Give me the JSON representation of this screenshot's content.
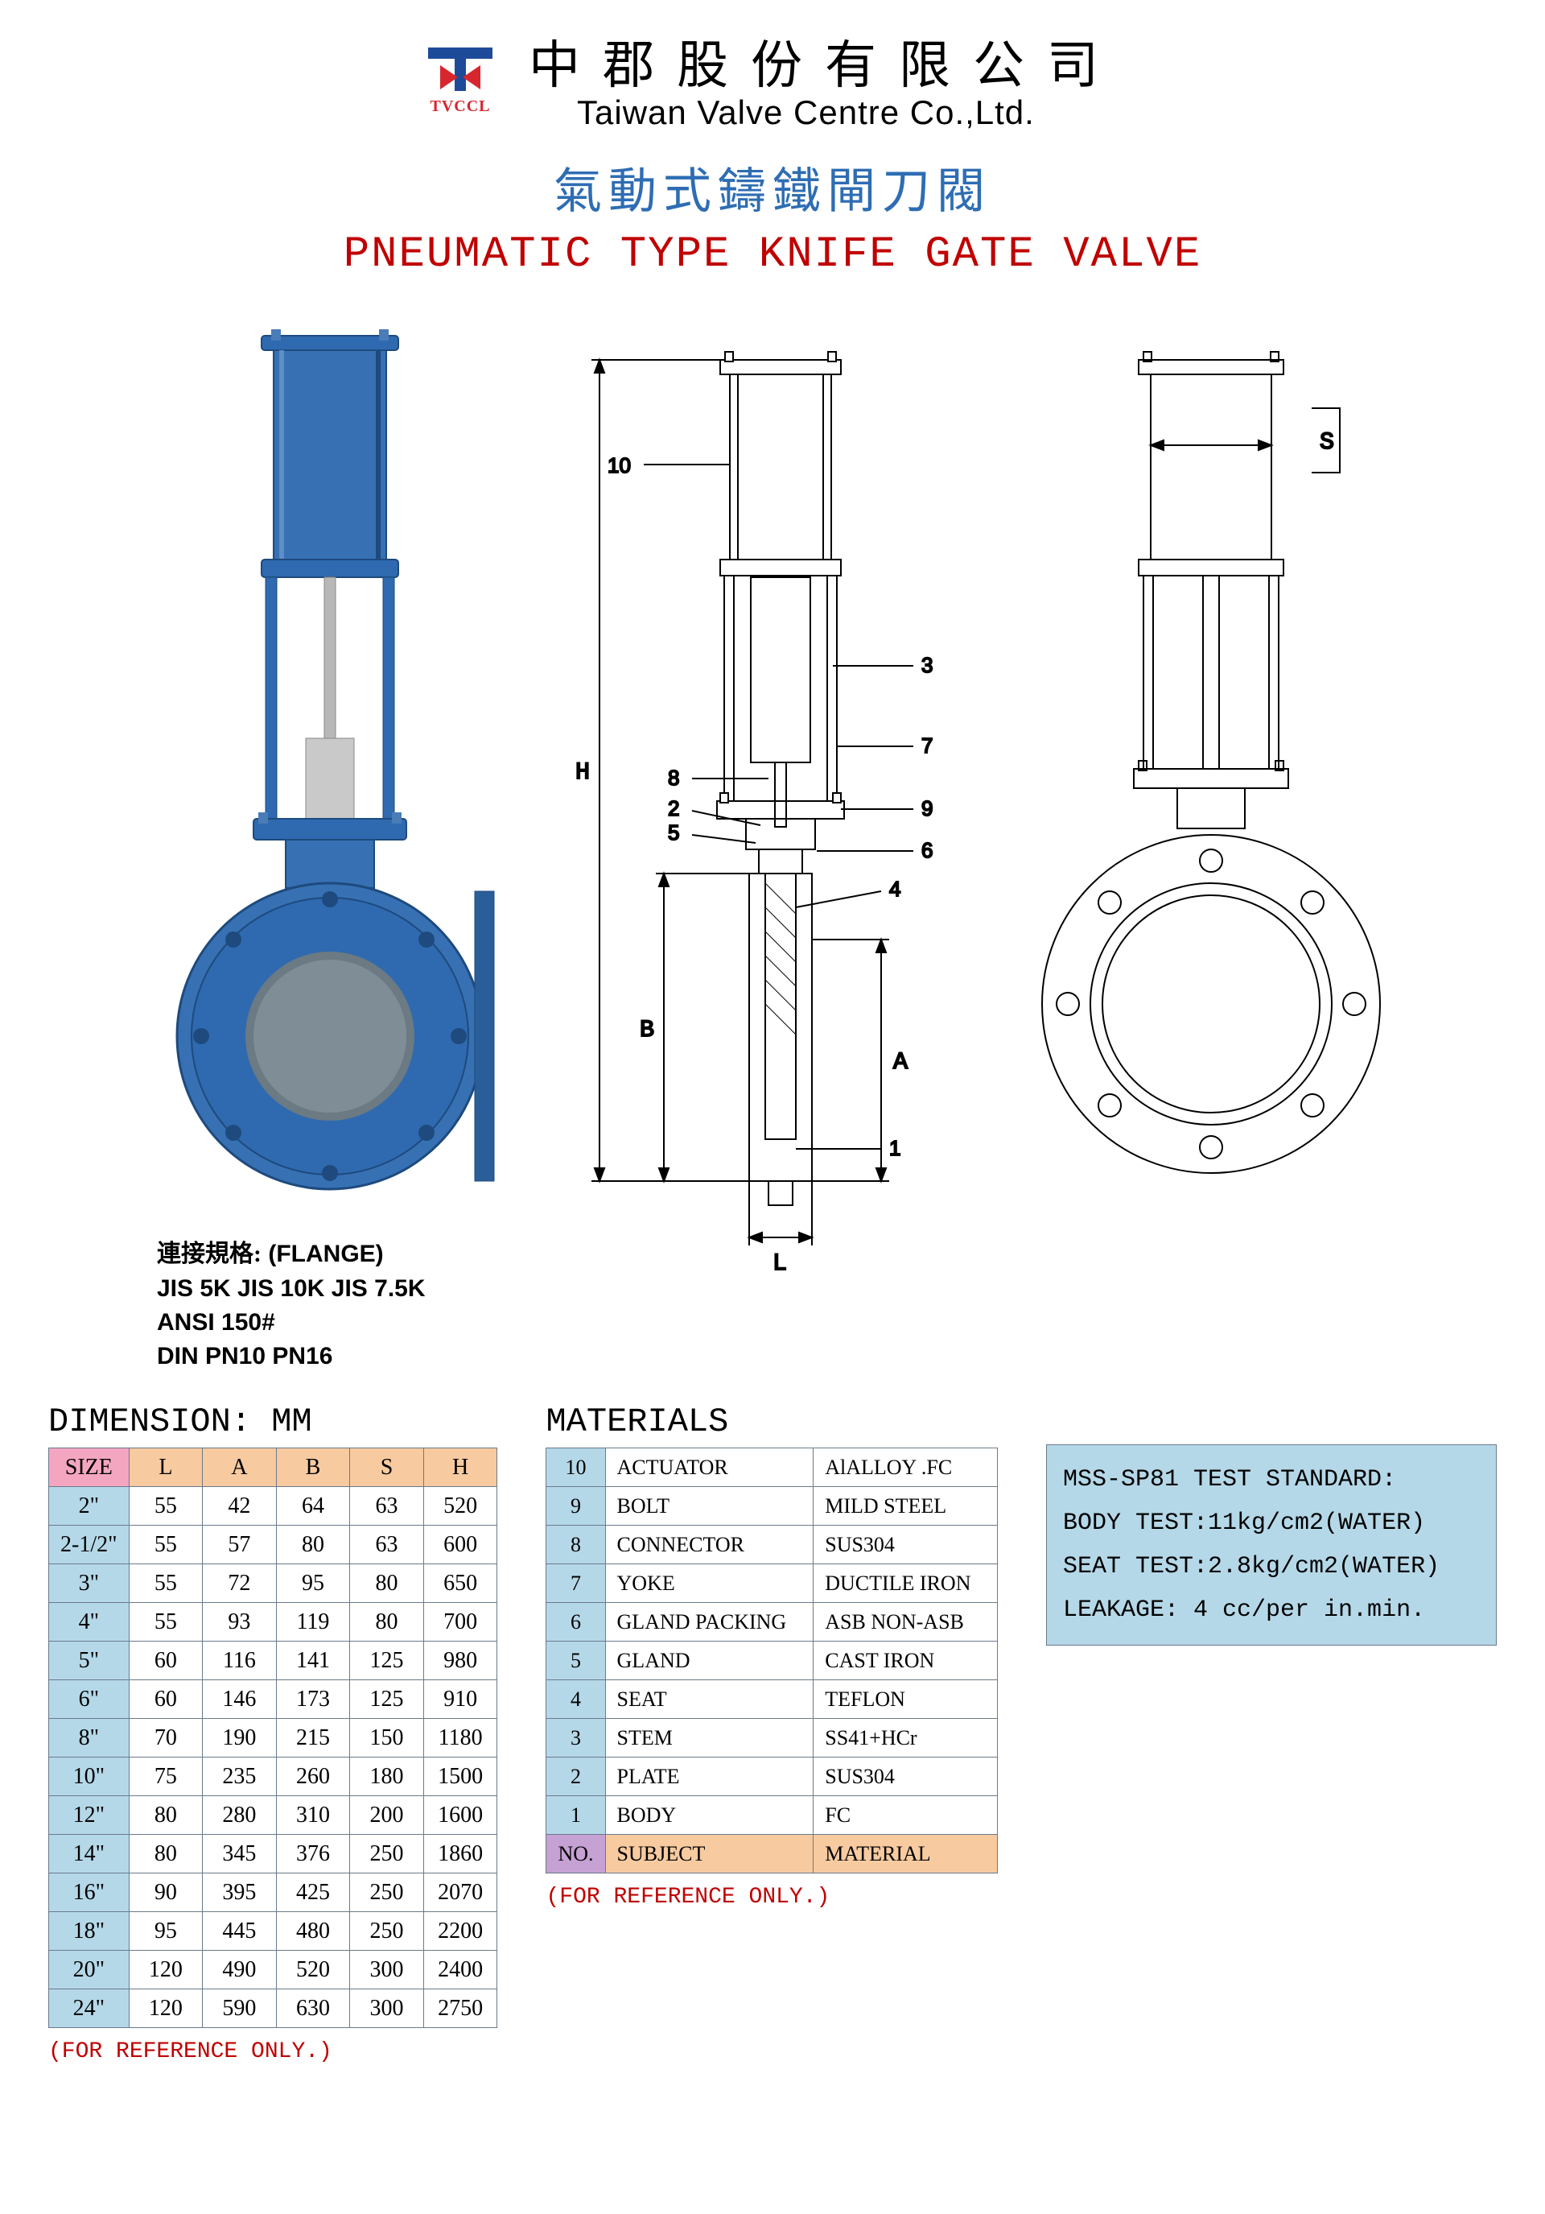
{
  "logo": {
    "text": "TVCCL"
  },
  "company": {
    "zh": "中郡股份有限公司",
    "en": "Taiwan Valve Centre Co.,Ltd."
  },
  "title": {
    "zh": "氣動式鑄鐵閘刀閥",
    "en": "PNEUMATIC TYPE KNIFE GATE VALVE"
  },
  "render_meta": {
    "line1_zh": "連接規格:",
    "line1_en": "(FLANGE)",
    "line2": "JIS 5K   JIS 10K   JIS 7.5K",
    "line3": "ANSI 150#",
    "line4": "DIN PN10 PN16"
  },
  "drawing_dims": {
    "H": "H",
    "B": "B",
    "L": "L",
    "A": "A",
    "ten": "10"
  },
  "drawing_callouts": [
    "10",
    "8",
    "2",
    "5",
    "3",
    "7",
    "9",
    "6",
    "4",
    "1"
  ],
  "flange_dim": {
    "S": "S"
  },
  "dimension_section_title": "DIMENSION: MM",
  "dimension_table": {
    "columns": [
      "SIZE",
      "L",
      "A",
      "B",
      "S",
      "H"
    ],
    "rows": [
      [
        "2\"",
        "55",
        "42",
        "64",
        "63",
        "520"
      ],
      [
        "2-1/2\"",
        "55",
        "57",
        "80",
        "63",
        "600"
      ],
      [
        "3\"",
        "55",
        "72",
        "95",
        "80",
        "650"
      ],
      [
        "4\"",
        "55",
        "93",
        "119",
        "80",
        "700"
      ],
      [
        "5\"",
        "60",
        "116",
        "141",
        "125",
        "980"
      ],
      [
        "6\"",
        "60",
        "146",
        "173",
        "125",
        "910"
      ],
      [
        "8\"",
        "70",
        "190",
        "215",
        "150",
        "1180"
      ],
      [
        "10\"",
        "75",
        "235",
        "260",
        "180",
        "1500"
      ],
      [
        "12\"",
        "80",
        "280",
        "310",
        "200",
        "1600"
      ],
      [
        "14\"",
        "80",
        "345",
        "376",
        "250",
        "1860"
      ],
      [
        "16\"",
        "90",
        "395",
        "425",
        "250",
        "2070"
      ],
      [
        "18\"",
        "95",
        "445",
        "480",
        "250",
        "2200"
      ],
      [
        "20\"",
        "120",
        "490",
        "520",
        "300",
        "2400"
      ],
      [
        "24\"",
        "120",
        "590",
        "630",
        "300",
        "2750"
      ]
    ],
    "ref_note": "(FOR REFERENCE ONLY.)"
  },
  "materials_section_title": "MATERIALS",
  "materials_table": {
    "header": {
      "no": "NO.",
      "subject": "SUBJECT",
      "material": "MATERIAL"
    },
    "rows": [
      {
        "no": "10",
        "subject": "ACTUATOR",
        "material": "AlALLOY .FC"
      },
      {
        "no": "9",
        "subject": "BOLT",
        "material": "MILD STEEL"
      },
      {
        "no": "8",
        "subject": "CONNECTOR",
        "material": "SUS304"
      },
      {
        "no": "7",
        "subject": "YOKE",
        "material": "DUCTILE IRON"
      },
      {
        "no": "6",
        "subject": "GLAND PACKING",
        "material": "ASB NON-ASB"
      },
      {
        "no": "5",
        "subject": "GLAND",
        "material": "CAST IRON"
      },
      {
        "no": "4",
        "subject": "SEAT",
        "material": "TEFLON"
      },
      {
        "no": "3",
        "subject": "STEM",
        "material": "SS41+HCr"
      },
      {
        "no": "2",
        "subject": "PLATE",
        "material": "SUS304"
      },
      {
        "no": "1",
        "subject": "BODY",
        "material": "FC"
      }
    ],
    "ref_note": "(FOR REFERENCE ONLY.)"
  },
  "standard_box": {
    "line1": "MSS-SP81 TEST STANDARD:",
    "line2": "BODY TEST:11kg/cm2(WATER)",
    "line3": "SEAT TEST:2.8kg/cm2(WATER)",
    "line4": "LEAKAGE: 4 cc/per in.min."
  },
  "colors": {
    "valve_blue": "#2f6ab0",
    "valve_dark": "#1e4a7d",
    "title_blue": "#2e6db3",
    "title_red": "#c00000",
    "table_header": "#f7caa0",
    "table_size_header": "#f4a6c1",
    "table_blue": "#b5d8e8",
    "table_purple": "#c6a1d4",
    "border": "#6a7a8a"
  }
}
